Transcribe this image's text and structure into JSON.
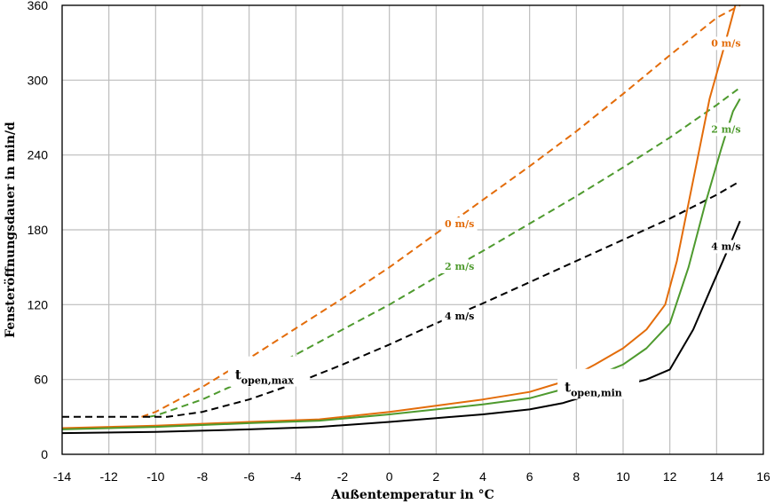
{
  "chart_data": {
    "type": "line",
    "title": "",
    "xlabel": "Außentemperatur in °C",
    "ylabel": "Fensteröffnungsdauer in min/d",
    "xlim": [
      -14,
      16
    ],
    "ylim": [
      0,
      360
    ],
    "xticks": [
      -14,
      -12,
      -10,
      -8,
      -6,
      -4,
      -2,
      0,
      2,
      4,
      6,
      8,
      10,
      12,
      14,
      16
    ],
    "yticks": [
      0,
      60,
      120,
      180,
      240,
      300,
      360
    ],
    "grid": true,
    "series": [
      {
        "id": "max-0",
        "group": "t_open,max",
        "name": "0 m/s",
        "color": "#E36C0A",
        "dash": true,
        "points": [
          [
            -10.6,
            30
          ],
          [
            -10,
            34
          ],
          [
            -8,
            54
          ],
          [
            -6,
            77
          ],
          [
            -4,
            101
          ],
          [
            -2,
            125
          ],
          [
            0,
            150
          ],
          [
            2,
            177
          ],
          [
            4,
            204
          ],
          [
            6,
            231
          ],
          [
            8,
            259
          ],
          [
            10,
            289
          ],
          [
            12,
            320
          ],
          [
            14,
            350
          ],
          [
            15,
            365
          ]
        ]
      },
      {
        "id": "max-2",
        "group": "t_open,max",
        "name": "2 m/s",
        "color": "#4E9A2E",
        "dash": true,
        "points": [
          [
            -10.3,
            30
          ],
          [
            -10,
            31
          ],
          [
            -8,
            44
          ],
          [
            -6,
            61
          ],
          [
            -4,
            80
          ],
          [
            -2,
            100
          ],
          [
            0,
            120
          ],
          [
            2,
            142
          ],
          [
            4,
            163
          ],
          [
            6,
            185
          ],
          [
            8,
            207
          ],
          [
            10,
            230
          ],
          [
            12,
            254
          ],
          [
            14,
            280
          ],
          [
            15,
            294
          ]
        ]
      },
      {
        "id": "max-4",
        "group": "t_open,max",
        "name": "4 m/s",
        "color": "#000000",
        "dash": true,
        "points": [
          [
            -14,
            30
          ],
          [
            -9.5,
            30
          ],
          [
            -8,
            34
          ],
          [
            -6,
            44
          ],
          [
            -4,
            57
          ],
          [
            -2,
            72
          ],
          [
            0,
            88
          ],
          [
            2,
            105
          ],
          [
            4,
            121
          ],
          [
            6,
            138
          ],
          [
            8,
            155
          ],
          [
            10,
            172
          ],
          [
            12,
            189
          ],
          [
            14,
            208
          ],
          [
            15,
            219
          ]
        ]
      },
      {
        "id": "min-0",
        "group": "t_open,min",
        "name": "0 m/s",
        "color": "#E36C0A",
        "dash": false,
        "points": [
          [
            -14,
            21
          ],
          [
            -10,
            23
          ],
          [
            -6,
            26
          ],
          [
            -3,
            28
          ],
          [
            0,
            34
          ],
          [
            2,
            39
          ],
          [
            4,
            44
          ],
          [
            6,
            50
          ],
          [
            7.4,
            58
          ],
          [
            8.8,
            72
          ],
          [
            10,
            85
          ],
          [
            11,
            100
          ],
          [
            11.8,
            120
          ],
          [
            12.3,
            155
          ],
          [
            13,
            220
          ],
          [
            13.7,
            285
          ],
          [
            14.3,
            325
          ],
          [
            14.8,
            365
          ]
        ]
      },
      {
        "id": "min-2",
        "group": "t_open,min",
        "name": "2 m/s",
        "color": "#4E9A2E",
        "dash": false,
        "points": [
          [
            -14,
            20
          ],
          [
            -10,
            22
          ],
          [
            -6,
            25
          ],
          [
            -3,
            27
          ],
          [
            0,
            32
          ],
          [
            2,
            36
          ],
          [
            4,
            40
          ],
          [
            6,
            45
          ],
          [
            7.4,
            52
          ],
          [
            10,
            72
          ],
          [
            11,
            85
          ],
          [
            12,
            105
          ],
          [
            12.8,
            150
          ],
          [
            13.5,
            200
          ],
          [
            14.2,
            245
          ],
          [
            14.7,
            275
          ],
          [
            15,
            285
          ]
        ]
      },
      {
        "id": "min-4",
        "group": "t_open,min",
        "name": "4 m/s",
        "color": "#000000",
        "dash": false,
        "points": [
          [
            -14,
            17
          ],
          [
            -10,
            18
          ],
          [
            -6,
            20
          ],
          [
            -3,
            22
          ],
          [
            0,
            26
          ],
          [
            2,
            29
          ],
          [
            4,
            32
          ],
          [
            6,
            36
          ],
          [
            7.4,
            41
          ],
          [
            9,
            50
          ],
          [
            11,
            60
          ],
          [
            12,
            68
          ],
          [
            13,
            100
          ],
          [
            13.8,
            135
          ],
          [
            14.5,
            165
          ],
          [
            15,
            187
          ]
        ]
      }
    ],
    "series_labels": [
      {
        "text": "0 m/s",
        "color": "#E36C0A",
        "x": 3.0,
        "y": 182
      },
      {
        "text": "2 m/s",
        "color": "#4E9A2E",
        "x": 3.0,
        "y": 148
      },
      {
        "text": "4 m/s",
        "color": "#000000",
        "x": 3.0,
        "y": 108
      },
      {
        "text": "0 m/s",
        "color": "#E36C0A",
        "x": 14.4,
        "y": 327
      },
      {
        "text": "2 m/s",
        "color": "#4E9A2E",
        "x": 14.4,
        "y": 258
      },
      {
        "text": "4 m/s",
        "color": "#000000",
        "x": 14.4,
        "y": 164
      }
    ],
    "annotations": [
      {
        "main": "t",
        "sub": "open,max",
        "x": -6.6,
        "y": 60
      },
      {
        "main": "t",
        "sub": "open,min",
        "x": 7.5,
        "y": 50
      }
    ]
  }
}
